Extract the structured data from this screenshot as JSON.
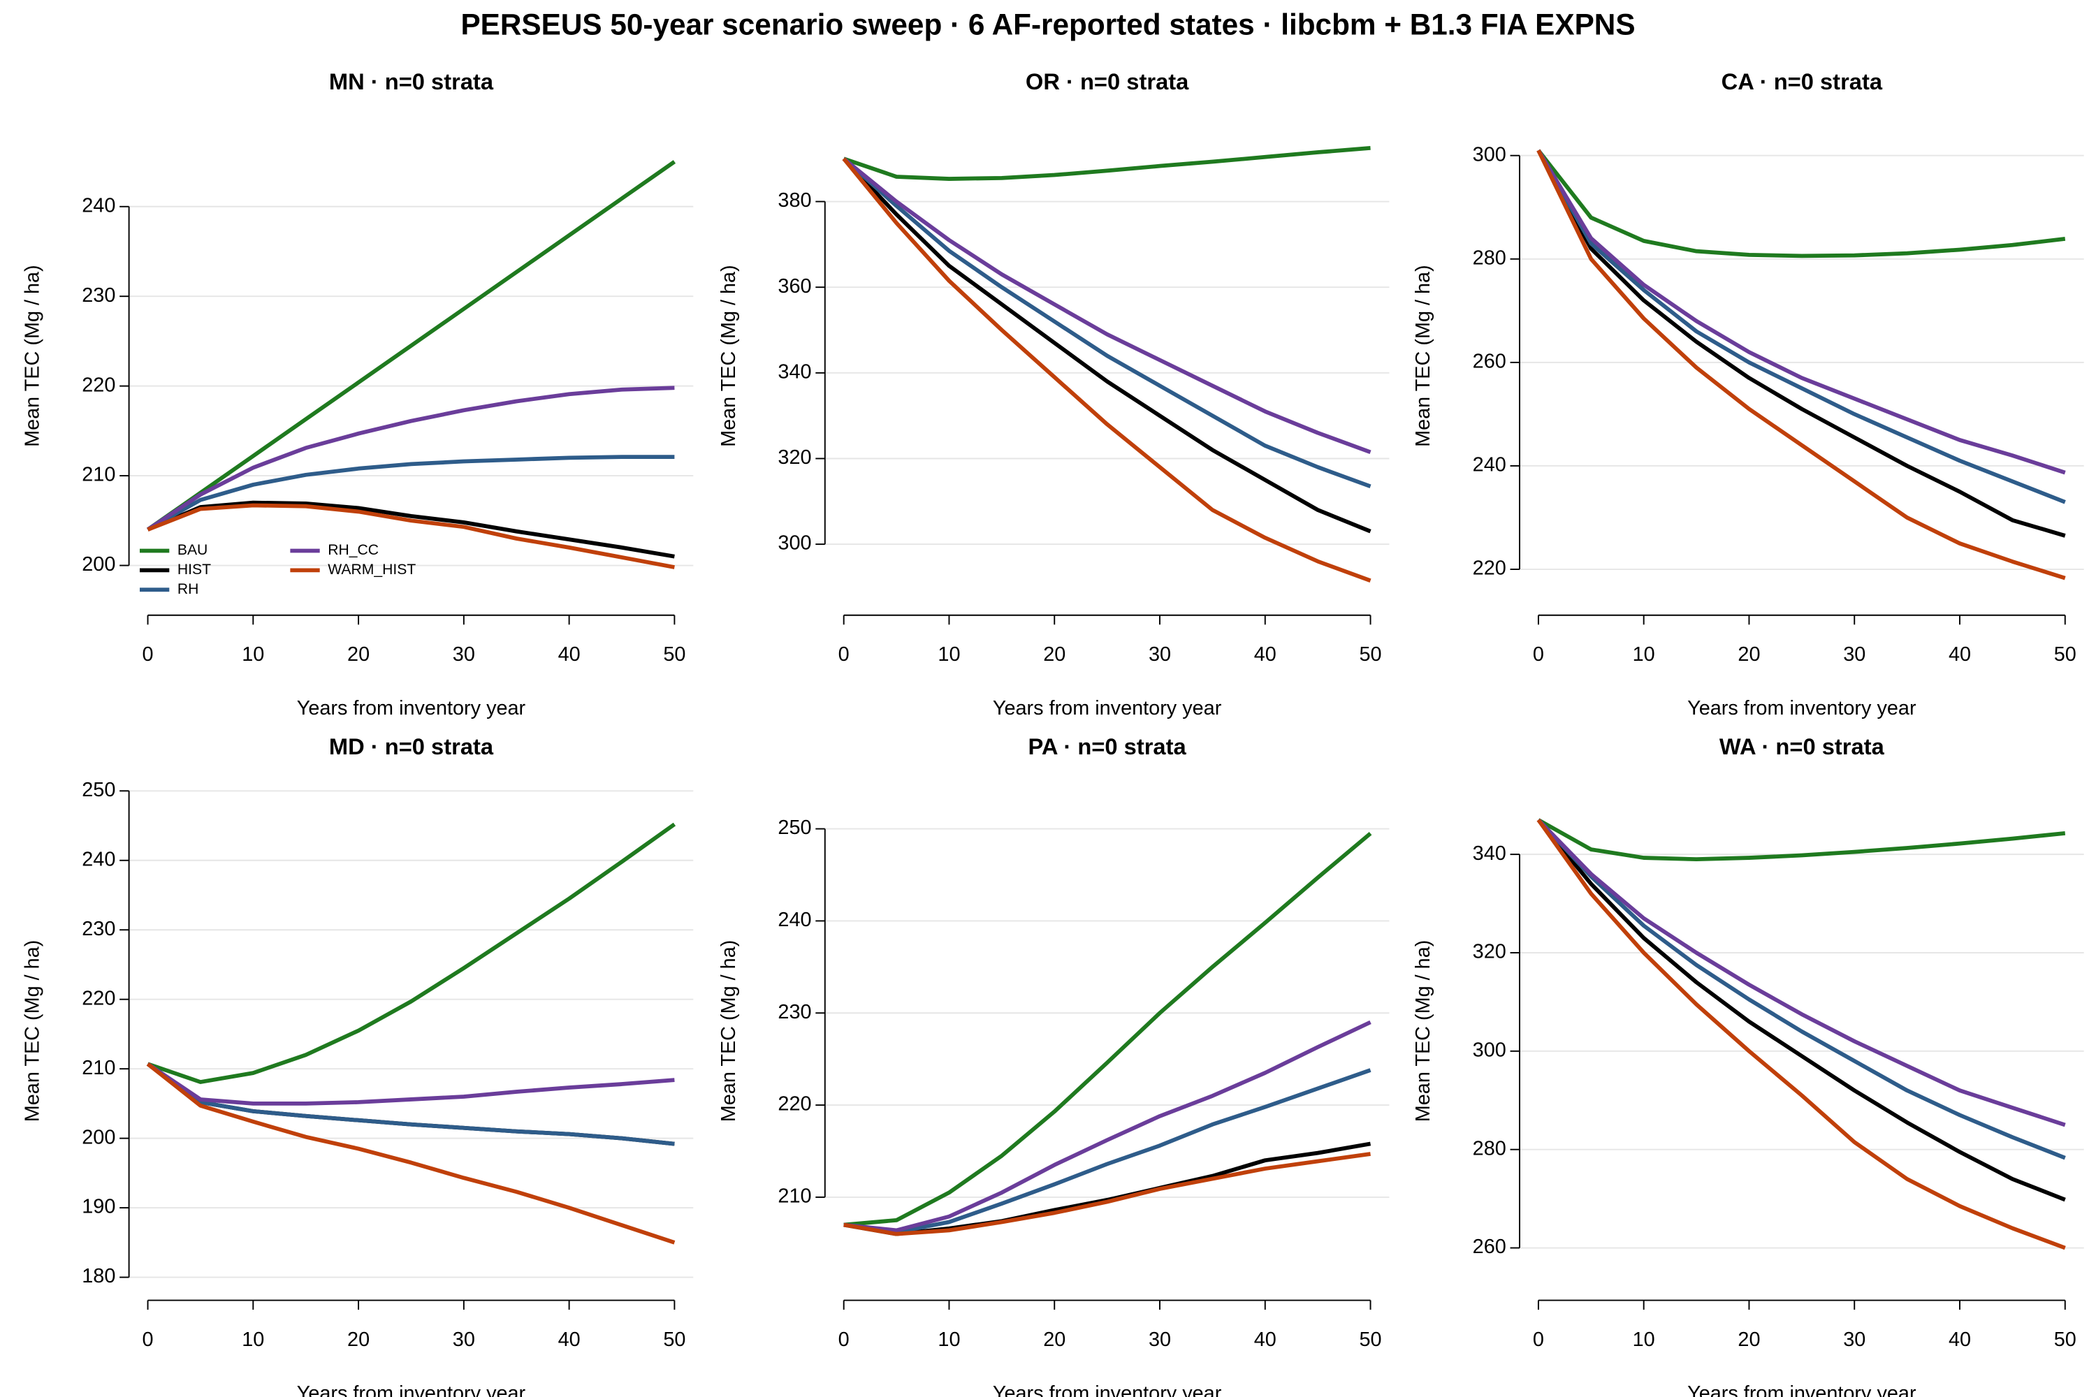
{
  "title": "PERSEUS 50-year scenario sweep · 6 AF-reported states · libcbm + B1.3 FIA EXPNS",
  "chart_data": [
    {
      "type": "line",
      "title": "MN · n=0 strata",
      "x_label": "Years from inventory year",
      "y_label": "Mean TEC (Mg / ha)",
      "x": [
        0,
        5,
        10,
        15,
        20,
        25,
        30,
        35,
        40,
        45,
        50
      ],
      "xlim": [
        0,
        50
      ],
      "xticks": [
        0,
        10,
        20,
        30,
        40,
        50
      ],
      "ylim": [
        196.4,
        250.3
      ],
      "yticks": [
        200,
        210,
        220,
        230,
        240
      ],
      "grid": true,
      "legend": "bottom-left",
      "series": [
        {
          "name": "BAU",
          "color": "#1f7a1f",
          "values": [
            204,
            208.1,
            212.2,
            216.3,
            220.4,
            224.5,
            228.6,
            232.7,
            236.8,
            240.9,
            245
          ]
        },
        {
          "name": "HIST",
          "color": "#000000",
          "values": [
            204,
            206.5,
            207,
            206.9,
            206.4,
            205.5,
            204.8,
            203.8,
            202.9,
            202,
            201
          ]
        },
        {
          "name": "RH",
          "color": "#2e5c8a",
          "values": [
            204,
            207.3,
            209,
            210.1,
            210.8,
            211.3,
            211.6,
            211.8,
            212,
            212.1,
            212.1
          ]
        },
        {
          "name": "RH_CC",
          "color": "#6a3d9a",
          "values": [
            204,
            207.9,
            210.9,
            213.1,
            214.7,
            216.1,
            217.3,
            218.3,
            219.1,
            219.6,
            219.8
          ]
        },
        {
          "name": "WARM_HIST",
          "color": "#c0400a",
          "values": [
            204,
            206.3,
            206.7,
            206.6,
            206,
            205,
            204.3,
            203,
            202,
            200.9,
            199.8
          ]
        }
      ]
    },
    {
      "type": "line",
      "title": "OR · n=0 strata",
      "x_label": "Years from inventory year",
      "y_label": "Mean TEC (Mg / ha)",
      "x": [
        0,
        5,
        10,
        15,
        20,
        25,
        30,
        35,
        40,
        45,
        50
      ],
      "xlim": [
        0,
        50
      ],
      "xticks": [
        0,
        10,
        20,
        30,
        40,
        50
      ],
      "ylim": [
        287.5,
        400.4
      ],
      "yticks": [
        300,
        320,
        340,
        360,
        380
      ],
      "grid": true,
      "series": [
        {
          "name": "BAU",
          "color": "#1f7a1f",
          "values": [
            390,
            385.8,
            385.3,
            385.5,
            386.2,
            387.2,
            388.3,
            389.3,
            390.4,
            391.5,
            392.5
          ]
        },
        {
          "name": "HIST",
          "color": "#000000",
          "values": [
            390,
            377,
            365,
            356,
            347,
            338,
            330,
            322,
            315,
            308,
            303
          ]
        },
        {
          "name": "RH",
          "color": "#2e5c8a",
          "values": [
            390,
            379,
            368.5,
            360,
            352,
            344,
            337,
            330,
            323,
            318,
            313.5
          ]
        },
        {
          "name": "RH_CC",
          "color": "#6a3d9a",
          "values": [
            390,
            380,
            371,
            363,
            356,
            349,
            343,
            337,
            331,
            326,
            321.5
          ]
        },
        {
          "name": "WARM_HIST",
          "color": "#c0400a",
          "values": [
            390,
            375,
            361.5,
            350,
            339,
            328,
            318,
            308,
            301.5,
            296,
            291.5
          ]
        }
      ]
    },
    {
      "type": "line",
      "title": "CA · n=0 strata",
      "x_label": "Years from inventory year",
      "y_label": "Mean TEC (Mg / ha)",
      "x": [
        0,
        5,
        10,
        15,
        20,
        25,
        30,
        35,
        40,
        45,
        50
      ],
      "xlim": [
        0,
        50
      ],
      "xticks": [
        0,
        10,
        20,
        30,
        40,
        50
      ],
      "ylim": [
        214.5,
        308
      ],
      "yticks": [
        220,
        240,
        260,
        280,
        300
      ],
      "grid": true,
      "series": [
        {
          "name": "BAU",
          "color": "#1f7a1f",
          "values": [
            301,
            288,
            283.5,
            281.5,
            280.8,
            280.6,
            280.7,
            281.1,
            281.8,
            282.7,
            283.9
          ]
        },
        {
          "name": "HIST",
          "color": "#000000",
          "values": [
            301,
            282,
            272,
            264,
            257,
            251,
            245.5,
            240,
            235,
            229.5,
            226.5
          ]
        },
        {
          "name": "RH",
          "color": "#2e5c8a",
          "values": [
            301,
            283,
            274,
            266,
            260,
            255,
            250,
            245.5,
            241,
            237,
            233
          ]
        },
        {
          "name": "RH_CC",
          "color": "#6a3d9a",
          "values": [
            301,
            284,
            275,
            268,
            262,
            257,
            253,
            249,
            245,
            242,
            238.7
          ]
        },
        {
          "name": "WARM_HIST",
          "color": "#c0400a",
          "values": [
            301,
            280,
            268.5,
            259,
            251,
            244,
            237,
            230,
            225,
            221.5,
            218.3
          ]
        }
      ]
    },
    {
      "type": "line",
      "title": "MD · n=0 strata",
      "x_label": "Years from inventory year",
      "y_label": "Mean TEC (Mg / ha)",
      "x": [
        0,
        5,
        10,
        15,
        20,
        25,
        30,
        35,
        40,
        45,
        50
      ],
      "xlim": [
        0,
        50
      ],
      "xticks": [
        0,
        10,
        20,
        30,
        40,
        50
      ],
      "ylim": [
        179.2,
        251.7
      ],
      "yticks": [
        180,
        190,
        200,
        210,
        220,
        230,
        240,
        250
      ],
      "grid": true,
      "series": [
        {
          "name": "BAU",
          "color": "#1f7a1f",
          "values": [
            210.7,
            208.1,
            209.4,
            212,
            215.5,
            219.7,
            224.5,
            229.5,
            234.5,
            239.8,
            245.2
          ]
        },
        {
          "name": "HIST",
          "color": "#000000",
          "values": [
            210.7,
            205.2,
            203.9,
            203.2,
            202.6,
            202,
            201.5,
            201,
            200.6,
            200,
            199.2
          ]
        },
        {
          "name": "RH",
          "color": "#2e5c8a",
          "values": [
            210.7,
            205.2,
            203.9,
            203.2,
            202.6,
            202,
            201.5,
            201,
            200.6,
            200,
            199.2
          ]
        },
        {
          "name": "RH_CC",
          "color": "#6a3d9a",
          "values": [
            210.7,
            205.6,
            205,
            205,
            205.2,
            205.6,
            206,
            206.7,
            207.3,
            207.8,
            208.4
          ]
        },
        {
          "name": "WARM_HIST",
          "color": "#c0400a",
          "values": [
            210.7,
            204.7,
            202.4,
            200.2,
            198.5,
            196.5,
            194.3,
            192.3,
            190,
            187.5,
            185
          ]
        }
      ]
    },
    {
      "type": "line",
      "title": "PA · n=0 strata",
      "x_label": "Years from inventory year",
      "y_label": "Mean TEC (Mg / ha)",
      "x": [
        0,
        5,
        10,
        15,
        20,
        25,
        30,
        35,
        40,
        45,
        50
      ],
      "xlim": [
        0,
        50
      ],
      "xticks": [
        0,
        10,
        20,
        30,
        40,
        50
      ],
      "ylim": [
        200.7,
        255.4
      ],
      "yticks": [
        210,
        220,
        230,
        240,
        250
      ],
      "grid": true,
      "series": [
        {
          "name": "BAU",
          "color": "#1f7a1f",
          "values": [
            207,
            207.5,
            210.5,
            214.5,
            219.3,
            224.6,
            230,
            235,
            239.8,
            244.7,
            249.5
          ]
        },
        {
          "name": "HIST",
          "color": "#000000",
          "values": [
            207,
            206,
            206.6,
            207.4,
            208.6,
            209.7,
            211,
            212.3,
            214,
            214.8,
            215.8
          ]
        },
        {
          "name": "RH",
          "color": "#2e5c8a",
          "values": [
            207,
            206.2,
            207.3,
            209.3,
            211.4,
            213.6,
            215.6,
            217.9,
            219.8,
            221.8,
            223.8
          ]
        },
        {
          "name": "RH_CC",
          "color": "#6a3d9a",
          "values": [
            207,
            206.4,
            207.9,
            210.5,
            213.5,
            216.2,
            218.8,
            221,
            223.5,
            226.3,
            229
          ]
        },
        {
          "name": "WARM_HIST",
          "color": "#c0400a",
          "values": [
            207,
            206,
            206.4,
            207.3,
            208.3,
            209.5,
            210.9,
            212,
            213.1,
            213.9,
            214.7
          ]
        }
      ]
    },
    {
      "type": "line",
      "title": "WA · n=0 strata",
      "x_label": "Years from inventory year",
      "y_label": "Mean TEC (Mg / ha)",
      "x": [
        0,
        5,
        10,
        15,
        20,
        25,
        30,
        35,
        40,
        45,
        50
      ],
      "xlim": [
        0,
        50
      ],
      "xticks": [
        0,
        10,
        20,
        30,
        40,
        50
      ],
      "ylim": [
        252.9,
        355.3
      ],
      "yticks": [
        260,
        280,
        300,
        320,
        340
      ],
      "grid": true,
      "series": [
        {
          "name": "BAU",
          "color": "#1f7a1f",
          "values": [
            347,
            341,
            339.3,
            339,
            339.3,
            339.8,
            340.5,
            341.3,
            342.2,
            343.2,
            344.3
          ]
        },
        {
          "name": "HIST",
          "color": "#000000",
          "values": [
            347,
            334,
            323,
            314,
            306,
            299,
            292,
            285.5,
            279.5,
            274,
            269.8
          ]
        },
        {
          "name": "RH",
          "color": "#2e5c8a",
          "values": [
            347,
            335.5,
            325.5,
            317.5,
            310.5,
            304,
            298,
            292,
            287,
            282.5,
            278.3
          ]
        },
        {
          "name": "RH_CC",
          "color": "#6a3d9a",
          "values": [
            347,
            336,
            327,
            320,
            313.5,
            307.5,
            302,
            297,
            292,
            288.5,
            285
          ]
        },
        {
          "name": "WARM_HIST",
          "color": "#c0400a",
          "values": [
            347,
            332,
            320,
            309.5,
            300,
            291,
            281.5,
            274,
            268.5,
            264,
            260
          ]
        }
      ]
    }
  ]
}
